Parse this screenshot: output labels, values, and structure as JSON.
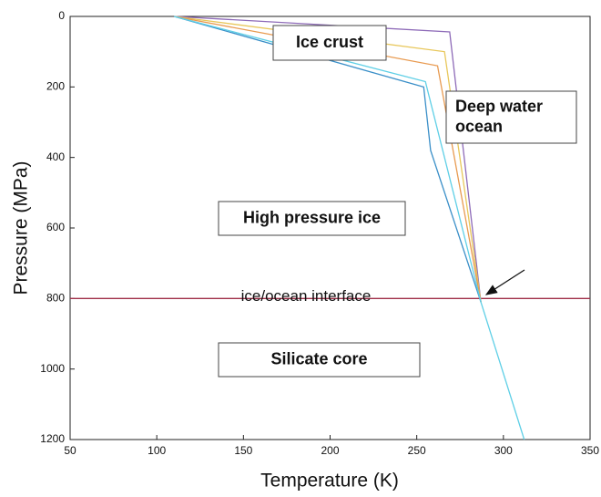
{
  "chart_data": {
    "type": "line",
    "x_label": "Temperature (K)",
    "y_label": "Pressure (MPa)",
    "xlim": [
      50,
      350
    ],
    "xticks": [
      50,
      100,
      150,
      200,
      250,
      300,
      350
    ],
    "ylim": [
      0,
      1200
    ],
    "yticks": [
      0,
      200,
      400,
      600,
      800,
      1000,
      1200
    ],
    "invert_y": true,
    "series": [
      {
        "color": "#8e6bb8",
        "x": [
          110,
          269,
          287
        ],
        "values": [
          0,
          44,
          810
        ]
      },
      {
        "color": "#e8c75a",
        "x": [
          110,
          266,
          287
        ],
        "values": [
          0,
          100,
          810
        ]
      },
      {
        "color": "#e89a50",
        "x": [
          110,
          262,
          287
        ],
        "values": [
          0,
          140,
          810
        ]
      },
      {
        "color": "#3a8fc8",
        "x": [
          110,
          254,
          258,
          287
        ],
        "values": [
          0,
          200,
          380,
          810
        ]
      },
      {
        "color": "#5fcfe6",
        "x": [
          110,
          255,
          287,
          312
        ],
        "values": [
          0,
          185,
          810,
          1200
        ]
      }
    ],
    "hline": {
      "value": 800,
      "color": "#a0304a",
      "label": "ice/ocean interface"
    },
    "annotations": [
      {
        "lines": [
          "Ice crust"
        ]
      },
      {
        "lines": [
          "Deep water",
          "ocean"
        ]
      },
      {
        "lines": [
          "High pressure ice"
        ]
      },
      {
        "lines": [
          "Silicate core"
        ]
      }
    ]
  }
}
